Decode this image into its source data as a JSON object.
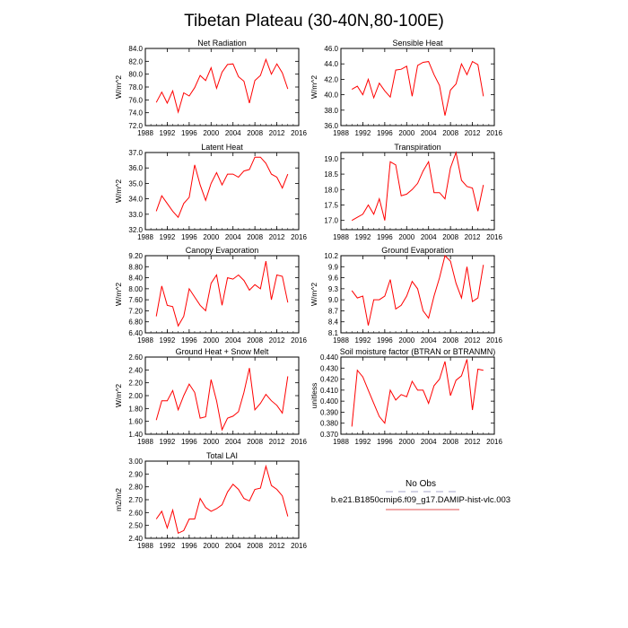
{
  "title": "Tibetan Plateau (30-40N,80-100E)",
  "legend": {
    "entries": [
      {
        "label": "No Obs",
        "color": "#a6a6c8",
        "dashed": true
      },
      {
        "label": "b.e21.B1850cmip6.f09_g17.DAMIP-hist-vlc.003",
        "color": "#e05050",
        "dashed": false
      }
    ]
  },
  "chart_data": [
    {
      "type": "line",
      "title": "Net Radiation",
      "ylabel": "W/m^2",
      "xlim": [
        1988,
        2016
      ],
      "ylim": [
        72.0,
        84.0
      ],
      "xticks": [
        1988,
        1992,
        1996,
        2000,
        2004,
        2008,
        2012,
        2016
      ],
      "yticks": [
        72.0,
        74.0,
        76.0,
        78.0,
        80.0,
        82.0,
        84.0
      ],
      "ytick_labels": [
        "72.0",
        "74.0",
        "76.0",
        "78.0",
        "80.0",
        "82.0",
        "84.0"
      ],
      "color": "#ff0000",
      "x": [
        1990,
        1991,
        1992,
        1993,
        1994,
        1995,
        1996,
        1997,
        1998,
        1999,
        2000,
        2001,
        2002,
        2003,
        2004,
        2005,
        2006,
        2007,
        2008,
        2009,
        2010,
        2011,
        2012,
        2013,
        2014
      ],
      "values": [
        75.6,
        77.2,
        75.5,
        77.4,
        74.1,
        77.1,
        76.6,
        77.9,
        79.8,
        79.0,
        81.0,
        77.8,
        80.3,
        81.5,
        81.6,
        79.6,
        78.9,
        75.5,
        79.0,
        79.8,
        82.3,
        80.0,
        81.6,
        80.2,
        77.7
      ]
    },
    {
      "type": "line",
      "title": "Sensible Heat",
      "ylabel": "W/m^2",
      "xlim": [
        1988,
        2016
      ],
      "ylim": [
        36.0,
        46.0
      ],
      "xticks": [
        1988,
        1992,
        1996,
        2000,
        2004,
        2008,
        2012,
        2016
      ],
      "yticks": [
        36.0,
        38.0,
        40.0,
        42.0,
        44.0,
        46.0
      ],
      "ytick_labels": [
        "36.0",
        "38.0",
        "40.0",
        "42.0",
        "44.0",
        "46.0"
      ],
      "color": "#ff0000",
      "x": [
        1990,
        1991,
        1992,
        1993,
        1994,
        1995,
        1996,
        1997,
        1998,
        1999,
        2000,
        2001,
        2002,
        2003,
        2004,
        2005,
        2006,
        2007,
        2008,
        2009,
        2010,
        2011,
        2012,
        2013,
        2014
      ],
      "values": [
        40.7,
        41.1,
        40.0,
        42.0,
        39.6,
        41.5,
        40.5,
        39.7,
        43.2,
        43.3,
        43.7,
        39.8,
        43.8,
        44.2,
        44.3,
        42.6,
        41.2,
        37.3,
        40.6,
        41.4,
        44.0,
        42.6,
        44.3,
        43.9,
        39.8
      ]
    },
    {
      "type": "line",
      "title": "Latent Heat",
      "ylabel": "W/m^2",
      "xlim": [
        1988,
        2016
      ],
      "ylim": [
        32.0,
        37.0
      ],
      "xticks": [
        1988,
        1992,
        1996,
        2000,
        2004,
        2008,
        2012,
        2016
      ],
      "yticks": [
        32.0,
        33.0,
        34.0,
        35.0,
        36.0,
        37.0
      ],
      "ytick_labels": [
        "32.0",
        "33.0",
        "34.0",
        "35.0",
        "36.0",
        "37.0"
      ],
      "color": "#ff0000",
      "x": [
        1990,
        1991,
        1992,
        1993,
        1994,
        1995,
        1996,
        1997,
        1998,
        1999,
        2000,
        2001,
        2002,
        2003,
        2004,
        2005,
        2006,
        2007,
        2008,
        2009,
        2010,
        2011,
        2012,
        2013,
        2014
      ],
      "values": [
        33.2,
        34.2,
        33.7,
        33.2,
        32.8,
        33.7,
        34.1,
        36.2,
        34.9,
        33.9,
        35.0,
        35.7,
        34.9,
        35.6,
        35.6,
        35.4,
        35.8,
        35.9,
        36.7,
        36.7,
        36.3,
        35.6,
        35.4,
        34.7,
        35.6
      ]
    },
    {
      "type": "line",
      "title": "Transpiration",
      "ylabel": "",
      "xlim": [
        1988,
        2016
      ],
      "ylim": [
        16.7,
        19.2
      ],
      "xticks": [
        1988,
        1992,
        1996,
        2000,
        2004,
        2008,
        2012,
        2016
      ],
      "yticks": [
        17.0,
        17.5,
        18.0,
        18.5,
        19.0
      ],
      "ytick_labels": [
        "17.0",
        "17.5",
        "18.0",
        "18.5",
        "19.0"
      ],
      "color": "#ff0000",
      "x": [
        1990,
        1991,
        1992,
        1993,
        1994,
        1995,
        1996,
        1997,
        1998,
        1999,
        2000,
        2001,
        2002,
        2003,
        2004,
        2005,
        2006,
        2007,
        2008,
        2009,
        2010,
        2011,
        2012,
        2013,
        2014
      ],
      "values": [
        17.0,
        17.1,
        17.2,
        17.5,
        17.2,
        17.7,
        17.0,
        18.9,
        18.8,
        17.8,
        17.85,
        18.0,
        18.2,
        18.6,
        18.9,
        17.9,
        17.9,
        17.7,
        18.7,
        19.2,
        18.3,
        18.1,
        18.05,
        17.3,
        18.15
      ]
    },
    {
      "type": "line",
      "title": "Canopy Evaporation",
      "ylabel": "W/m^2",
      "xlim": [
        1988,
        2016
      ],
      "ylim": [
        6.4,
        9.2
      ],
      "xticks": [
        1988,
        1992,
        1996,
        2000,
        2004,
        2008,
        2012,
        2016
      ],
      "yticks": [
        6.4,
        6.8,
        7.2,
        7.6,
        8.0,
        8.4,
        8.8,
        9.2
      ],
      "ytick_labels": [
        "6.40",
        "6.80",
        "7.20",
        "7.60",
        "8.00",
        "8.40",
        "8.80",
        "9.20"
      ],
      "color": "#ff0000",
      "x": [
        1990,
        1991,
        1992,
        1993,
        1994,
        1995,
        1996,
        1997,
        1998,
        1999,
        2000,
        2001,
        2002,
        2003,
        2004,
        2005,
        2006,
        2007,
        2008,
        2009,
        2010,
        2011,
        2012,
        2013,
        2014
      ],
      "values": [
        7.0,
        8.1,
        7.4,
        7.35,
        6.65,
        7.0,
        8.0,
        7.7,
        7.4,
        7.2,
        8.2,
        8.5,
        7.4,
        8.4,
        8.35,
        8.5,
        8.3,
        7.95,
        8.15,
        8.0,
        9.0,
        7.6,
        8.5,
        8.45,
        7.5
      ]
    },
    {
      "type": "line",
      "title": "Ground Evaporation",
      "ylabel": "W/m^2",
      "xlim": [
        1988,
        2016
      ],
      "ylim": [
        8.1,
        10.2
      ],
      "xticks": [
        1988,
        1992,
        1996,
        2000,
        2004,
        2008,
        2012,
        2016
      ],
      "yticks": [
        8.1,
        8.4,
        8.7,
        9.0,
        9.3,
        9.6,
        9.9,
        10.2
      ],
      "ytick_labels": [
        "8.1",
        "8.4",
        "8.7",
        "9.0",
        "9.3",
        "9.6",
        "9.9",
        "10.2"
      ],
      "color": "#ff0000",
      "x": [
        1990,
        1991,
        1992,
        1993,
        1994,
        1995,
        1996,
        1997,
        1998,
        1999,
        2000,
        2001,
        2002,
        2003,
        2004,
        2005,
        2006,
        2007,
        2008,
        2009,
        2010,
        2011,
        2012,
        2013,
        2014
      ],
      "values": [
        9.25,
        9.05,
        9.1,
        8.3,
        9.0,
        9.0,
        9.1,
        9.55,
        8.75,
        8.85,
        9.1,
        9.5,
        9.3,
        8.7,
        8.5,
        9.1,
        9.6,
        10.2,
        10.05,
        9.45,
        9.05,
        9.9,
        8.95,
        9.05,
        9.95
      ]
    },
    {
      "type": "line",
      "title": "Ground Heat + Snow Melt",
      "ylabel": "W/m^2",
      "xlim": [
        1988,
        2016
      ],
      "ylim": [
        1.4,
        2.6
      ],
      "xticks": [
        1988,
        1992,
        1996,
        2000,
        2004,
        2008,
        2012,
        2016
      ],
      "yticks": [
        1.4,
        1.6,
        1.8,
        2.0,
        2.2,
        2.4,
        2.6
      ],
      "ytick_labels": [
        "1.40",
        "1.60",
        "1.80",
        "2.00",
        "2.20",
        "2.40",
        "2.60"
      ],
      "color": "#ff0000",
      "x": [
        1990,
        1991,
        1992,
        1993,
        1994,
        1995,
        1996,
        1997,
        1998,
        1999,
        2000,
        2001,
        2002,
        2003,
        2004,
        2005,
        2006,
        2007,
        2008,
        2009,
        2010,
        2011,
        2012,
        2013,
        2014
      ],
      "values": [
        1.62,
        1.92,
        1.92,
        2.08,
        1.78,
        2.0,
        2.18,
        2.05,
        1.65,
        1.67,
        2.25,
        1.92,
        1.47,
        1.65,
        1.68,
        1.75,
        2.05,
        2.43,
        1.78,
        1.88,
        2.02,
        1.92,
        1.85,
        1.73,
        2.3
      ]
    },
    {
      "type": "line",
      "title": "Soil moisture factor (BTRAN or BTRANMN)",
      "ylabel": "unitless",
      "xlim": [
        1988,
        2016
      ],
      "ylim": [
        0.37,
        0.44
      ],
      "xticks": [
        1988,
        1992,
        1996,
        2000,
        2004,
        2008,
        2012,
        2016
      ],
      "yticks": [
        0.37,
        0.38,
        0.39,
        0.4,
        0.41,
        0.42,
        0.43,
        0.44
      ],
      "ytick_labels": [
        "0.370",
        "0.380",
        "0.390",
        "0.400",
        "0.410",
        "0.420",
        "0.430",
        "0.440"
      ],
      "color": "#ff0000",
      "x": [
        1990,
        1991,
        1992,
        1993,
        1994,
        1995,
        1996,
        1997,
        1998,
        1999,
        2000,
        2001,
        2002,
        2003,
        2004,
        2005,
        2006,
        2007,
        2008,
        2009,
        2010,
        2011,
        2012,
        2013,
        2014
      ],
      "values": [
        0.377,
        0.428,
        0.422,
        0.41,
        0.398,
        0.386,
        0.38,
        0.41,
        0.401,
        0.406,
        0.404,
        0.418,
        0.41,
        0.41,
        0.398,
        0.414,
        0.42,
        0.436,
        0.405,
        0.419,
        0.423,
        0.438,
        0.392,
        0.429,
        0.428
      ]
    },
    {
      "type": "line",
      "title": "Total LAI",
      "ylabel": "m2/m2",
      "xlim": [
        1988,
        2016
      ],
      "ylim": [
        2.4,
        3.0
      ],
      "xticks": [
        1988,
        1992,
        1996,
        2000,
        2004,
        2008,
        2012,
        2016
      ],
      "yticks": [
        2.4,
        2.5,
        2.6,
        2.7,
        2.8,
        2.9,
        3.0
      ],
      "ytick_labels": [
        "2.40",
        "2.50",
        "2.60",
        "2.70",
        "2.80",
        "2.90",
        "3.00"
      ],
      "color": "#ff0000",
      "x": [
        1990,
        1991,
        1992,
        1993,
        1994,
        1995,
        1996,
        1997,
        1998,
        1999,
        2000,
        2001,
        2002,
        2003,
        2004,
        2005,
        2006,
        2007,
        2008,
        2009,
        2010,
        2011,
        2012,
        2013,
        2014
      ],
      "values": [
        2.55,
        2.61,
        2.48,
        2.62,
        2.44,
        2.46,
        2.55,
        2.55,
        2.71,
        2.64,
        2.61,
        2.63,
        2.66,
        2.76,
        2.82,
        2.78,
        2.71,
        2.69,
        2.78,
        2.79,
        2.96,
        2.81,
        2.78,
        2.73,
        2.57
      ]
    }
  ]
}
